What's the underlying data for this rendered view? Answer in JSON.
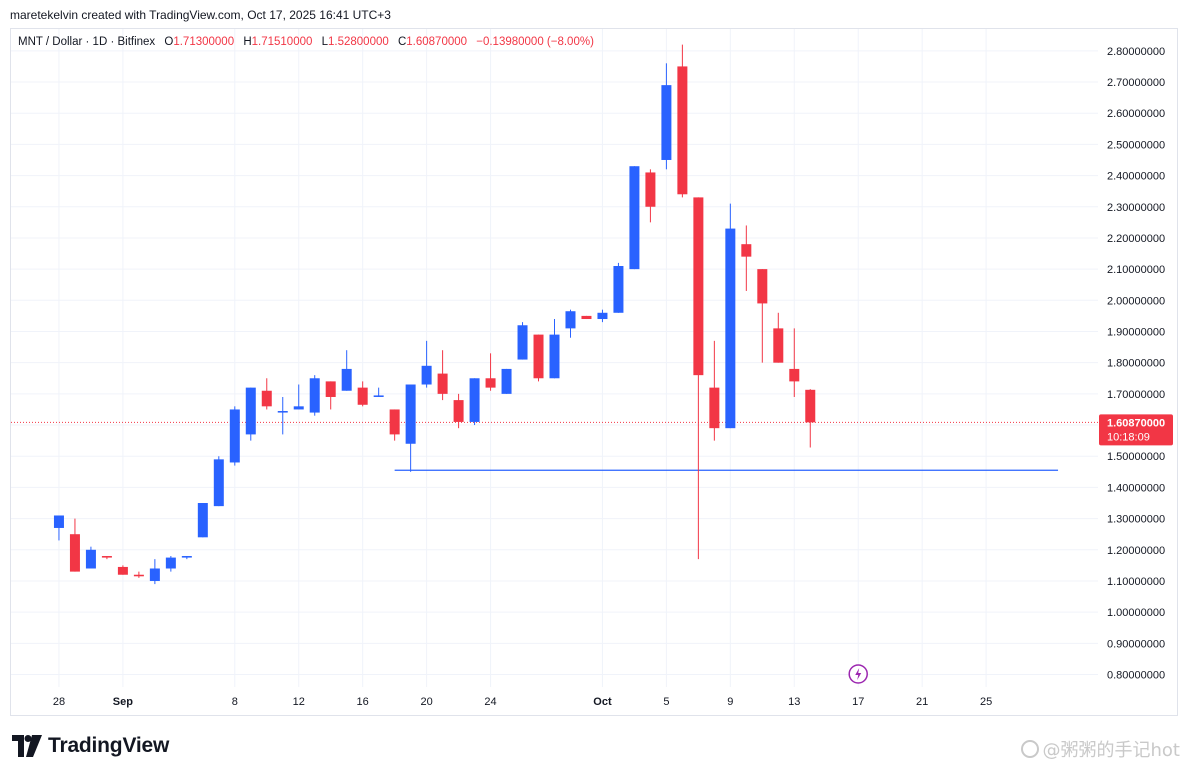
{
  "caption": "maretekelvin created with TradingView.com, Oct 17, 2025 16:41 UTC+3",
  "legend": {
    "symbol": "MNT / Dollar · 1D · Bitfinex",
    "o_label": "O",
    "o_value": "1.71300000",
    "h_label": "H",
    "h_value": "1.71510000",
    "l_label": "L",
    "l_value": "1.52800000",
    "c_label": "C",
    "c_value": "1.60870000",
    "change": "−0.13980000 (−8.00%)"
  },
  "footer": {
    "brand": "TradingView"
  },
  "watermark": "@粥粥的手记hot",
  "colors": {
    "up": "#2962ff",
    "down": "#f23645",
    "grid": "#f0f3fa",
    "axis_text": "#131722",
    "hline": "#2962ff"
  },
  "chart_data": {
    "type": "candlestick",
    "y_ticks": [
      "0.80000000",
      "0.90000000",
      "1.00000000",
      "1.10000000",
      "1.20000000",
      "1.30000000",
      "1.40000000",
      "1.50000000",
      "1.60000000",
      "1.70000000",
      "1.80000000",
      "1.90000000",
      "2.00000000",
      "2.10000000",
      "2.20000000",
      "2.30000000",
      "2.40000000",
      "2.50000000",
      "2.60000000",
      "2.70000000",
      "2.80000000"
    ],
    "ylim": [
      0.76,
      2.87
    ],
    "x_start_date": "2025-08-28",
    "x_ticks": [
      {
        "day": 0,
        "label": "28"
      },
      {
        "day": 4,
        "label": "Sep"
      },
      {
        "day": 11,
        "label": "8"
      },
      {
        "day": 15,
        "label": "12"
      },
      {
        "day": 19,
        "label": "16"
      },
      {
        "day": 23,
        "label": "20"
      },
      {
        "day": 27,
        "label": "24"
      },
      {
        "day": 34,
        "label": "Oct"
      },
      {
        "day": 38,
        "label": "5"
      },
      {
        "day": 42,
        "label": "9"
      },
      {
        "day": 46,
        "label": "13"
      },
      {
        "day": 50,
        "label": "17"
      },
      {
        "day": 54,
        "label": "21"
      },
      {
        "day": 58,
        "label": "25"
      }
    ],
    "x_range_days": [
      -3,
      65
    ],
    "last_price_label": "1.60870000",
    "countdown_label": "10:18:09",
    "last_price": 1.6087,
    "horizontal_line": {
      "price": 1.455,
      "from_day": 21,
      "to_day": 62.5
    },
    "candles": [
      {
        "date": "2025-08-28",
        "o": 1.27,
        "h": 1.31,
        "l": 1.23,
        "c": 1.31
      },
      {
        "date": "2025-08-29",
        "o": 1.25,
        "h": 1.3,
        "l": 1.13,
        "c": 1.13
      },
      {
        "date": "2025-08-30",
        "o": 1.14,
        "h": 1.21,
        "l": 1.14,
        "c": 1.2
      },
      {
        "date": "2025-08-31",
        "o": 1.18,
        "h": 1.18,
        "l": 1.17,
        "c": 1.175
      },
      {
        "date": "2025-09-01",
        "o": 1.145,
        "h": 1.15,
        "l": 1.12,
        "c": 1.12
      },
      {
        "date": "2025-09-02",
        "o": 1.12,
        "h": 1.13,
        "l": 1.11,
        "c": 1.115
      },
      {
        "date": "2025-09-03",
        "o": 1.1,
        "h": 1.17,
        "l": 1.09,
        "c": 1.14
      },
      {
        "date": "2025-09-04",
        "o": 1.14,
        "h": 1.18,
        "l": 1.13,
        "c": 1.175
      },
      {
        "date": "2025-09-05",
        "o": 1.175,
        "h": 1.18,
        "l": 1.17,
        "c": 1.18
      },
      {
        "date": "2025-09-06",
        "o": 1.24,
        "h": 1.35,
        "l": 1.24,
        "c": 1.35
      },
      {
        "date": "2025-09-07",
        "o": 1.34,
        "h": 1.5,
        "l": 1.34,
        "c": 1.49
      },
      {
        "date": "2025-09-08",
        "o": 1.48,
        "h": 1.66,
        "l": 1.47,
        "c": 1.65
      },
      {
        "date": "2025-09-09",
        "o": 1.57,
        "h": 1.72,
        "l": 1.55,
        "c": 1.72
      },
      {
        "date": "2025-09-10",
        "o": 1.71,
        "h": 1.75,
        "l": 1.65,
        "c": 1.66
      },
      {
        "date": "2025-09-11",
        "o": 1.64,
        "h": 1.69,
        "l": 1.57,
        "c": 1.645
      },
      {
        "date": "2025-09-12",
        "o": 1.65,
        "h": 1.73,
        "l": 1.65,
        "c": 1.66
      },
      {
        "date": "2025-09-13",
        "o": 1.64,
        "h": 1.76,
        "l": 1.63,
        "c": 1.75
      },
      {
        "date": "2025-09-14",
        "o": 1.74,
        "h": 1.74,
        "l": 1.65,
        "c": 1.69
      },
      {
        "date": "2025-09-15",
        "o": 1.71,
        "h": 1.84,
        "l": 1.71,
        "c": 1.78
      },
      {
        "date": "2025-09-16",
        "o": 1.72,
        "h": 1.74,
        "l": 1.66,
        "c": 1.665
      },
      {
        "date": "2025-09-17",
        "o": 1.69,
        "h": 1.72,
        "l": 1.69,
        "c": 1.695
      },
      {
        "date": "2025-09-18",
        "o": 1.65,
        "h": 1.65,
        "l": 1.55,
        "c": 1.57
      },
      {
        "date": "2025-09-19",
        "o": 1.54,
        "h": 1.73,
        "l": 1.45,
        "c": 1.73
      },
      {
        "date": "2025-09-20",
        "o": 1.73,
        "h": 1.87,
        "l": 1.72,
        "c": 1.79
      },
      {
        "date": "2025-09-21",
        "o": 1.765,
        "h": 1.84,
        "l": 1.68,
        "c": 1.7
      },
      {
        "date": "2025-09-22",
        "o": 1.68,
        "h": 1.7,
        "l": 1.59,
        "c": 1.61
      },
      {
        "date": "2025-09-23",
        "o": 1.61,
        "h": 1.75,
        "l": 1.6,
        "c": 1.75
      },
      {
        "date": "2025-09-24",
        "o": 1.75,
        "h": 1.83,
        "l": 1.71,
        "c": 1.72
      },
      {
        "date": "2025-09-25",
        "o": 1.7,
        "h": 1.78,
        "l": 1.7,
        "c": 1.78
      },
      {
        "date": "2025-09-26",
        "o": 1.81,
        "h": 1.93,
        "l": 1.81,
        "c": 1.92
      },
      {
        "date": "2025-09-27",
        "o": 1.89,
        "h": 1.89,
        "l": 1.74,
        "c": 1.75
      },
      {
        "date": "2025-09-28",
        "o": 1.75,
        "h": 1.94,
        "l": 1.75,
        "c": 1.89
      },
      {
        "date": "2025-09-29",
        "o": 1.91,
        "h": 1.97,
        "l": 1.88,
        "c": 1.965
      },
      {
        "date": "2025-09-30",
        "o": 1.95,
        "h": 1.95,
        "l": 1.94,
        "c": 1.94
      },
      {
        "date": "2025-10-01",
        "o": 1.94,
        "h": 1.97,
        "l": 1.93,
        "c": 1.96
      },
      {
        "date": "2025-10-02",
        "o": 1.96,
        "h": 2.12,
        "l": 1.96,
        "c": 2.11
      },
      {
        "date": "2025-10-03",
        "o": 2.1,
        "h": 2.43,
        "l": 2.1,
        "c": 2.43
      },
      {
        "date": "2025-10-04",
        "o": 2.41,
        "h": 2.42,
        "l": 2.25,
        "c": 2.3
      },
      {
        "date": "2025-10-05",
        "o": 2.45,
        "h": 2.76,
        "l": 2.42,
        "c": 2.69
      },
      {
        "date": "2025-10-06",
        "o": 2.75,
        "h": 2.82,
        "l": 2.33,
        "c": 2.34
      },
      {
        "date": "2025-10-07",
        "o": 2.33,
        "h": 2.33,
        "l": 1.17,
        "c": 1.76
      },
      {
        "date": "2025-10-08",
        "o": 1.72,
        "h": 1.87,
        "l": 1.55,
        "c": 1.59
      },
      {
        "date": "2025-10-09",
        "o": 1.59,
        "h": 2.31,
        "l": 1.59,
        "c": 2.23
      },
      {
        "date": "2025-10-10",
        "o": 2.18,
        "h": 2.24,
        "l": 2.03,
        "c": 2.14
      },
      {
        "date": "2025-10-11",
        "o": 2.1,
        "h": 2.1,
        "l": 1.8,
        "c": 1.99
      },
      {
        "date": "2025-10-12",
        "o": 1.91,
        "h": 1.96,
        "l": 1.8,
        "c": 1.8
      },
      {
        "date": "2025-10-13",
        "o": 1.78,
        "h": 1.91,
        "l": 1.69,
        "c": 1.74
      },
      {
        "date": "2025-10-14",
        "o": 1.713,
        "h": 1.7151,
        "l": 1.528,
        "c": 1.6087
      }
    ]
  }
}
